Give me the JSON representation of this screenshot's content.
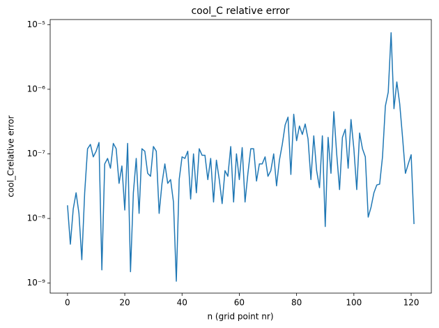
{
  "chart_data": {
    "type": "line",
    "title": "cool_C relative error",
    "xlabel": "n (grid point nr)",
    "ylabel": "cool_Crelative error",
    "log_y": true,
    "color": "#1f77b4",
    "x": [
      0,
      1,
      2,
      3,
      4,
      5,
      6,
      7,
      8,
      9,
      10,
      11,
      12,
      13,
      14,
      15,
      16,
      17,
      18,
      19,
      20,
      21,
      22,
      23,
      24,
      25,
      26,
      27,
      28,
      29,
      30,
      31,
      32,
      33,
      34,
      35,
      36,
      37,
      38,
      39,
      40,
      41,
      42,
      43,
      44,
      45,
      46,
      47,
      48,
      49,
      50,
      51,
      52,
      53,
      54,
      55,
      56,
      57,
      58,
      59,
      60,
      61,
      62,
      63,
      64,
      65,
      66,
      67,
      68,
      69,
      70,
      71,
      72,
      73,
      74,
      75,
      76,
      77,
      78,
      79,
      80,
      81,
      82,
      83,
      84,
      85,
      86,
      87,
      88,
      89,
      90,
      91,
      92,
      93,
      94,
      95,
      96,
      97,
      98,
      99,
      100,
      101,
      102,
      103,
      104,
      105,
      106,
      107,
      108,
      109,
      110,
      111,
      112,
      113,
      114,
      115,
      116,
      117,
      118,
      119,
      120,
      121
    ],
    "values": [
      1.6e-08,
      4e-09,
      1.4e-08,
      2.5e-08,
      1.2e-08,
      2.3e-09,
      2.5e-08,
      1.2e-07,
      1.4e-07,
      9e-08,
      1.1e-07,
      1.5e-07,
      1.6e-09,
      7e-08,
      8.5e-08,
      6e-08,
      1.45e-07,
      1.2e-07,
      3.5e-08,
      6.5e-08,
      1.35e-08,
      1.45e-07,
      1.5e-09,
      2.5e-08,
      8.5e-08,
      1.2e-08,
      1.2e-07,
      1.1e-07,
      5e-08,
      4.5e-08,
      1.3e-07,
      1.1e-07,
      1.2e-08,
      3.5e-08,
      7e-08,
      3.5e-08,
      4e-08,
      1.8e-08,
      1.07e-09,
      4e-08,
      9e-08,
      8.5e-08,
      1.1e-07,
      2e-08,
      1e-07,
      2.5e-08,
      1.2e-07,
      9.5e-08,
      9.5e-08,
      4e-08,
      8.5e-08,
      1.8e-08,
      8e-08,
      4e-08,
      1.7e-08,
      5.5e-08,
      4.5e-08,
      1.3e-07,
      1.8e-08,
      1e-07,
      4e-08,
      1.25e-07,
      1.8e-08,
      5e-08,
      1.2e-07,
      1.2e-07,
      3.8e-08,
      7e-08,
      7e-08,
      9e-08,
      4.5e-08,
      5.5e-08,
      1e-07,
      3.2e-08,
      8e-08,
      1.4e-07,
      2.8e-07,
      3.7e-07,
      4.8e-08,
      4.1e-07,
      1.6e-07,
      2.7e-07,
      2e-07,
      2.9e-07,
      1.7e-07,
      4e-08,
      1.9e-07,
      5.5e-08,
      3e-08,
      1.9e-07,
      7.5e-09,
      1.8e-07,
      5e-08,
      4.5e-07,
      1e-07,
      2.8e-08,
      1.8e-07,
      2.4e-07,
      6e-08,
      3.4e-07,
      1.2e-07,
      2.8e-08,
      2.1e-07,
      1.2e-07,
      9e-08,
      1.05e-08,
      1.5e-08,
      2.5e-08,
      3.3e-08,
      3.4e-08,
      9e-08,
      5.5e-07,
      9e-07,
      7.5e-06,
      5e-07,
      1.3e-06,
      6e-07,
      1.8e-07,
      5e-08,
      7e-08,
      9.7e-08,
      8.2e-09
    ],
    "xlim": [
      -6.05,
      127.05
    ],
    "xticks": [
      0,
      20,
      40,
      60,
      80,
      100,
      120
    ],
    "ylim": [
      7e-10,
      1.2e-05
    ],
    "yticks": [
      {
        "value": 1e-09,
        "label": "10⁻⁹"
      },
      {
        "value": 1e-08,
        "label": "10⁻⁸"
      },
      {
        "value": 1e-07,
        "label": "10⁻⁷"
      },
      {
        "value": 1e-06,
        "label": "10⁻⁶"
      },
      {
        "value": 1e-05,
        "label": "10⁻⁵"
      }
    ]
  }
}
